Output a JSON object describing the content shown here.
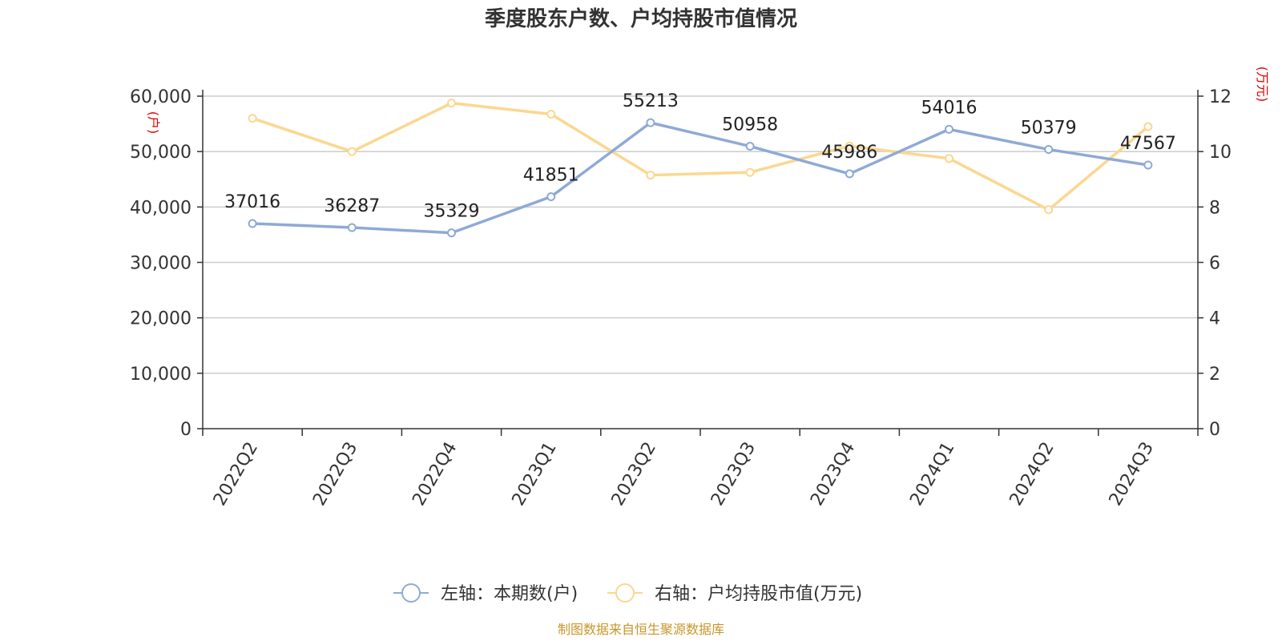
{
  "chart_data": {
    "type": "line",
    "title": "季度股东户数、户均持股市值情况",
    "categories": [
      "2022Q2",
      "2022Q3",
      "2022Q4",
      "2023Q1",
      "2023Q2",
      "2023Q3",
      "2023Q4",
      "2024Q1",
      "2024Q2",
      "2024Q3"
    ],
    "left_axis": {
      "unit": "(户)",
      "min": 0,
      "max": 60000,
      "ticks": [
        "0",
        "10,000",
        "20,000",
        "30,000",
        "40,000",
        "50,000",
        "60,000"
      ]
    },
    "right_axis": {
      "unit": "(万元)",
      "min": 0,
      "max": 12,
      "ticks": [
        "0",
        "2",
        "4",
        "6",
        "8",
        "10",
        "12"
      ]
    },
    "series": [
      {
        "name": "左轴：本期数(户)",
        "axis": "left",
        "color": "#8eaad6",
        "values": [
          37016,
          36287,
          35329,
          41851,
          55213,
          50958,
          45986,
          54016,
          50379,
          47567
        ],
        "labels": [
          "37016",
          "36287",
          "35329",
          "41851",
          "55213",
          "50958",
          "45986",
          "54016",
          "50379",
          "47567"
        ]
      },
      {
        "name": "右轴：户均持股市值(万元)",
        "axis": "right",
        "color": "#fbd78f",
        "values": [
          11.2,
          10.0,
          11.75,
          11.35,
          9.15,
          9.25,
          10.2,
          9.75,
          7.9,
          10.9
        ]
      }
    ],
    "grid": true,
    "legend": "bottom-center"
  },
  "source_text": "制图数据来自恒生聚源数据库"
}
